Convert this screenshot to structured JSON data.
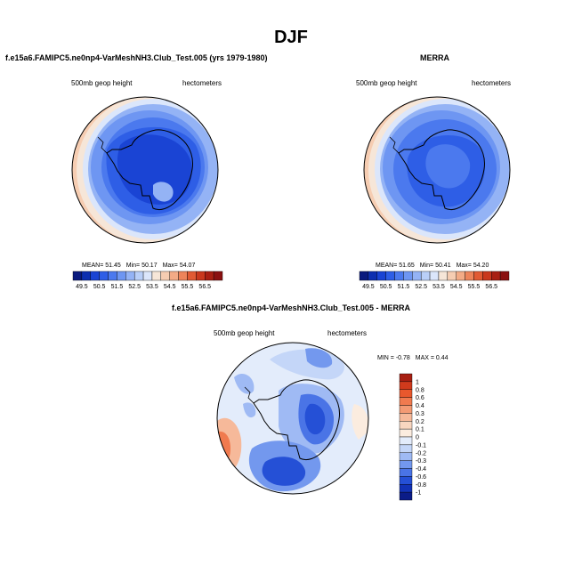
{
  "page": {
    "title": "DJF"
  },
  "panels": {
    "model": {
      "title": "f.e15a6.FAMIPC5.ne0np4-VarMeshNH3.Club_Test.005 (yrs 1979-1980)",
      "left_label": "500mb geop height",
      "right_label": "hectometers",
      "stats": {
        "mean_label": "MEAN=",
        "mean": "51.45",
        "min_label": "Min=",
        "min": "50.17",
        "max_label": "Max=",
        "max": "54.07"
      }
    },
    "obs": {
      "title": "MERRA",
      "left_label": "500mb geop height",
      "right_label": "hectometers",
      "stats": {
        "mean_label": "MEAN=",
        "mean": "51.65",
        "min_label": "Min=",
        "min": "50.41",
        "max_label": "Max=",
        "max": "54.20"
      }
    },
    "diff": {
      "title": "f.e15a6.FAMIPC5.ne0np4-VarMeshNH3.Club_Test.005 - MERRA",
      "left_label": "500mb geop height",
      "right_label": "hectometers",
      "stats": {
        "min_label": "MIN =",
        "min": "-0.78",
        "max_label": "MAX =",
        "max": "0.44"
      }
    }
  },
  "chart_data": [
    {
      "type": "heatmap",
      "title": "f.e15a6.FAMIPC5.ne0np4-VarMeshNH3.Club_Test.005 (yrs 1979-1980)",
      "variable": "500mb geop height",
      "units": "hectometers",
      "projection": "south polar stereographic",
      "mean": 51.45,
      "min": 50.17,
      "max": 54.07,
      "zone_values": [
        50.3,
        50.75,
        51.25,
        51.75,
        52.25,
        52.75,
        53.25,
        53.75
      ],
      "colorbar": {
        "labels": [
          "49.5",
          "50.5",
          "51.5",
          "52.5",
          "53.5",
          "54.5",
          "55.5",
          "56.5"
        ],
        "colors": [
          "#0a1a7e",
          "#0d2fb0",
          "#1a44d4",
          "#2e5ee6",
          "#4b79ee",
          "#6e96f2",
          "#94b3f5",
          "#b9cff8",
          "#dbe6fb",
          "#f6e6d8",
          "#f6cdb2",
          "#f3ab86",
          "#ed845a",
          "#e15a33",
          "#c9381d",
          "#a81f12",
          "#8a1010"
        ]
      }
    },
    {
      "type": "heatmap",
      "title": "MERRA",
      "variable": "500mb geop height",
      "units": "hectometers",
      "projection": "south polar stereographic",
      "mean": 51.65,
      "min": 50.41,
      "max": 54.2,
      "zone_values": [
        50.6,
        51.05,
        51.4,
        51.75,
        52.25,
        52.75,
        53.25,
        53.75
      ],
      "colorbar": {
        "labels": [
          "49.5",
          "50.5",
          "51.5",
          "52.5",
          "53.5",
          "54.5",
          "55.5",
          "56.5"
        ],
        "colors": [
          "#0a1a7e",
          "#0d2fb0",
          "#1a44d4",
          "#2e5ee6",
          "#4b79ee",
          "#6e96f2",
          "#94b3f5",
          "#b9cff8",
          "#dbe6fb",
          "#f6e6d8",
          "#f6cdb2",
          "#f3ab86",
          "#ed845a",
          "#e15a33",
          "#c9381d",
          "#a81f12",
          "#8a1010"
        ]
      }
    },
    {
      "type": "heatmap",
      "title": "f.e15a6.FAMIPC5.ne0np4-VarMeshNH3.Club_Test.005 - MERRA",
      "variable": "500mb geop height",
      "units": "hectometers",
      "projection": "south polar stereographic",
      "min": -0.78,
      "max": 0.44,
      "zone_values": [
        -0.1,
        -0.2,
        -0.3,
        -0.4,
        -0.6,
        0.1,
        0.3,
        0.4
      ],
      "colorbar": {
        "labels": [
          "1",
          "0.8",
          "0.6",
          "0.4",
          "0.3",
          "0.2",
          "0.1",
          "0",
          "-0.1",
          "-0.2",
          "-0.3",
          "-0.4",
          "-0.6",
          "-0.8",
          "-1"
        ],
        "colors": [
          "#a81f12",
          "#d03a1c",
          "#e8582d",
          "#f07a4f",
          "#f39a74",
          "#f6b99a",
          "#f8d6c0",
          "#fbecdf",
          "#e3ecfb",
          "#c4d6f8",
          "#9fbaf4",
          "#7398ee",
          "#4a74e6",
          "#2550d6",
          "#1232b6",
          "#0b1c88"
        ]
      }
    }
  ]
}
